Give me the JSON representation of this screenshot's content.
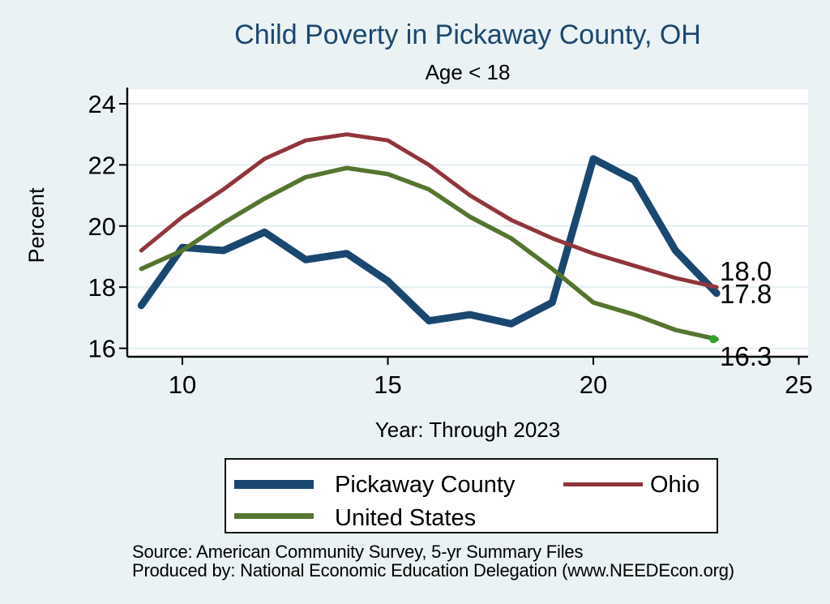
{
  "page": {
    "background_color": "#eaf2f3",
    "plot_background_color": "#ffffff",
    "gridline_color": "#e2edf0",
    "title_color": "#1a476f"
  },
  "chart_data": {
    "type": "line",
    "title": "Child Poverty in Pickaway County, OH",
    "subtitle": "Age < 18",
    "xlabel": "Year: Through 2023",
    "ylabel": "Percent",
    "x": [
      9,
      10,
      11,
      12,
      13,
      14,
      15,
      16,
      17,
      18,
      19,
      20,
      21,
      22,
      23
    ],
    "xticks": [
      10,
      15,
      20,
      25
    ],
    "yticks": [
      16,
      18,
      20,
      22,
      24
    ],
    "xlim": [
      8.65,
      25.25
    ],
    "ylim": [
      15.7,
      24.5
    ],
    "grid": "horizontal",
    "legend_position": "bottom",
    "series": [
      {
        "name": "Pickaway County",
        "color": "#1a476f",
        "line_width": 9,
        "values": [
          17.4,
          19.3,
          19.2,
          19.8,
          18.9,
          19.1,
          18.2,
          16.9,
          17.1,
          16.8,
          17.5,
          22.2,
          21.5,
          19.2,
          17.8
        ]
      },
      {
        "name": "Ohio",
        "color": "#90353b",
        "line_width": 5,
        "values": [
          19.2,
          20.3,
          21.2,
          22.2,
          22.8,
          23.0,
          22.8,
          22.0,
          21.0,
          20.2,
          19.6,
          19.1,
          18.7,
          18.3,
          18.0
        ]
      },
      {
        "name": "United States",
        "color": "#55752f",
        "line_width": 5.5,
        "end_marker_color": "#2da02d",
        "values": [
          18.6,
          19.2,
          20.1,
          20.9,
          21.6,
          21.9,
          21.7,
          21.2,
          20.3,
          19.6,
          18.6,
          17.5,
          17.1,
          16.6,
          16.3
        ]
      }
    ],
    "end_labels": [
      {
        "series": "Ohio",
        "text": "18.0"
      },
      {
        "series": "Pickaway County",
        "text": "17.8"
      },
      {
        "series": "United States",
        "text": "16.3"
      }
    ]
  },
  "footer": {
    "line1": "Source: American Community Survey, 5-yr Summary Files",
    "line2": "Produced by: National Economic Education Delegation (www.NEEDEcon.org)"
  }
}
